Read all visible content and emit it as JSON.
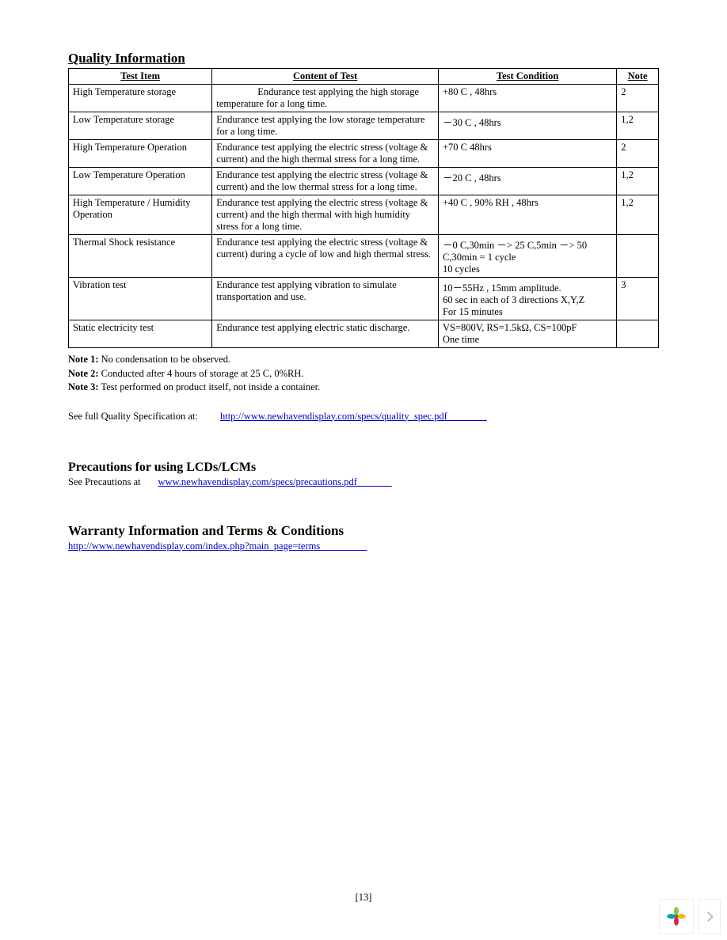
{
  "quality": {
    "title": "Quality Information",
    "headers": {
      "item": "Test Item",
      "content": "Content of Test",
      "condition": "Test Condition",
      "note": "Note"
    },
    "rows": [
      {
        "item": "High Temperature storage",
        "content": "Endurance test applying the high storage temperature for a long time.",
        "content_indent": true,
        "condition": "+80 C , 48hrs",
        "note": "2"
      },
      {
        "item": "Low Temperature storage",
        "content": "Endurance test applying the low storage temperature for a long time.",
        "condition": "－30 C , 48hrs",
        "note": "1,2"
      },
      {
        "item": "High Temperature Operation",
        "content": "Endurance test applying the electric stress (voltage & current) and the high thermal stress for a long time.",
        "condition": "+70 C 48hrs",
        "note": "2"
      },
      {
        "item": "Low Temperature Operation",
        "content": "Endurance test applying the electric stress (voltage & current) and the low thermal stress for a long time.",
        "condition": "－20 C , 48hrs",
        "note": "1,2"
      },
      {
        "item": "High Temperature / Humidity Operation",
        "content": "Endurance test applying the electric stress (voltage & current) and the high thermal with high humidity stress for a long time.",
        "condition": "+40 C , 90% RH ,  48hrs",
        "note": "1,2"
      },
      {
        "item": "Thermal Shock resistance",
        "content": "Endurance test applying the electric stress (voltage & current) during a cycle of low and high thermal stress.",
        "condition": "－0 C,30min －> 25 C,5min －> 50 C,30min = 1 cycle\n10 cycles",
        "note": ""
      },
      {
        "item": "Vibration test",
        "content": "Endurance test applying vibration to simulate transportation and use.",
        "condition": "10－55Hz , 15mm amplitude.\n60 sec in each of 3 directions X,Y,Z\nFor 15 minutes",
        "note": "3"
      },
      {
        "item": "Static electricity test",
        "content": "Endurance test applying electric static discharge.",
        "condition": "VS=800V, RS=1.5kΩ, CS=100pF\n One time",
        "note": ""
      }
    ],
    "notes": [
      {
        "label": "Note 1:",
        "text": " No condensation to be observed."
      },
      {
        "label": "Note 2:",
        "text": " Conducted after 4 hours of storage at 25            C, 0%RH."
      },
      {
        "label": "Note 3:",
        "text": "   Test performed on product itself, not inside a container."
      }
    ],
    "see_prefix": "See full Quality Specification at:",
    "see_link": "http://www.newhavendisplay.com/specs/quality_spec.pdf"
  },
  "precautions": {
    "title": "Precautions for using LCDs/LCMs",
    "see_prefix": "See Precautions at",
    "link": "www.newhavendisplay.com/specs/precautions.pdf"
  },
  "warranty": {
    "title": "Warranty Information and Terms & Conditions",
    "link": "http://www.newhavendisplay.com/index.php?main_page=terms"
  },
  "page_number": "[13]",
  "flower_colors": {
    "top": "#8cc63f",
    "right": "#f7b500",
    "bottom": "#d4255a",
    "left": "#00a99d",
    "center": "#666666"
  }
}
